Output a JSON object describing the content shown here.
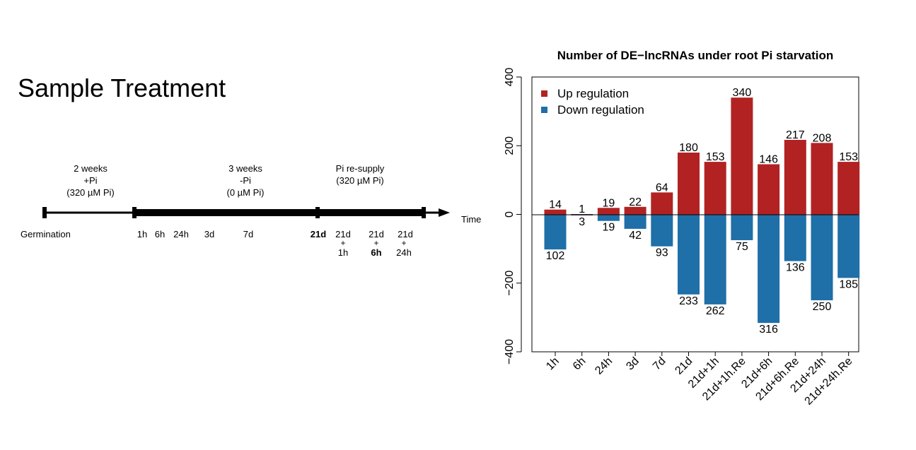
{
  "slide": {
    "title": "Sample Treatment"
  },
  "timeline": {
    "phases": [
      {
        "line1": "2 weeks",
        "line2": "+Pi",
        "line3": "(320 µM Pi)"
      },
      {
        "line1": "3 weeks",
        "line2": "-Pi",
        "line3": "(0 µM Pi)"
      },
      {
        "line1": "Pi re-supply",
        "line2": "(320 µM Pi)"
      }
    ],
    "start_label": "Germination",
    "time_label": "Time",
    "points": {
      "h1": "1h",
      "h6": "6h",
      "h24": "24h",
      "d3": "3d",
      "d7": "7d",
      "d21": "21d",
      "re1_top": "21d",
      "re1_plus": "+",
      "re1_bottom": "1h",
      "re6_top": "21d",
      "re6_plus": "+",
      "re6_bottom": "6h",
      "re24_top": "21d",
      "re24_plus": "+",
      "re24_bottom": "24h"
    }
  },
  "chart_data": {
    "type": "bar",
    "title": "Number of DE−lncRNAs under root Pi starvation",
    "categories": [
      "1h",
      "6h",
      "24h",
      "3d",
      "7d",
      "21d",
      "21d+1h",
      "21d+1h.Re",
      "21d+6h",
      "21d+6h.Re",
      "21d+24h",
      "21d+24h.Re"
    ],
    "series": [
      {
        "name": "Up regulation",
        "color": "#b22222",
        "values": [
          14,
          1,
          19,
          22,
          64,
          180,
          153,
          340,
          146,
          217,
          208,
          153
        ]
      },
      {
        "name": "Down regulation",
        "color": "#1f6fa8",
        "values": [
          -102,
          -3,
          -19,
          -42,
          -93,
          -233,
          -262,
          -75,
          -316,
          -136,
          -250,
          -185
        ]
      }
    ],
    "yticks": [
      "400",
      "200",
      "0",
      "−200",
      "−400"
    ],
    "ylim": [
      -400,
      400
    ],
    "legend_position": "top-left"
  }
}
